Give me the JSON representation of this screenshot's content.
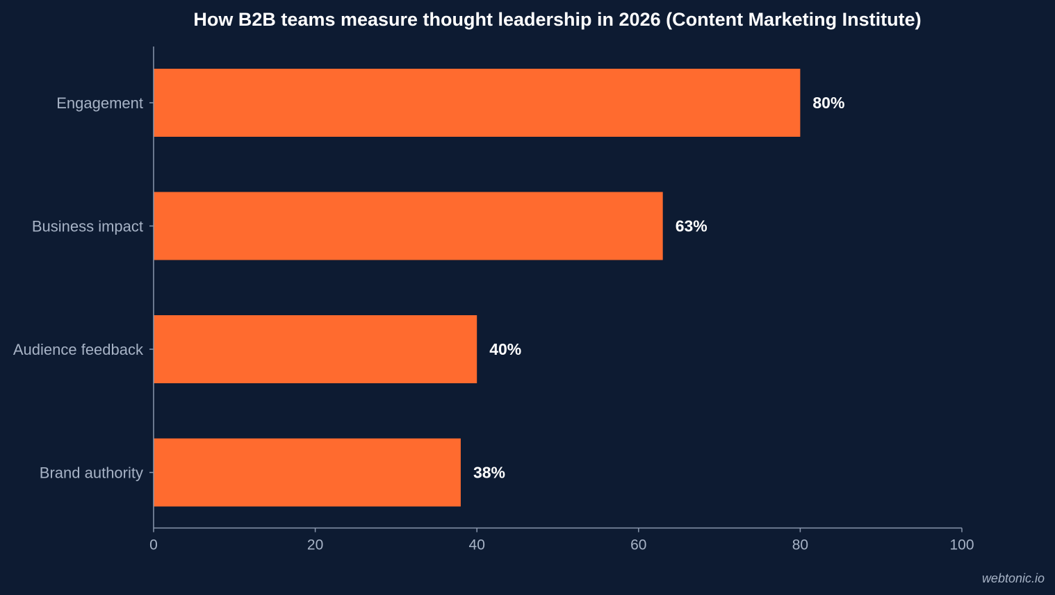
{
  "chart_data": {
    "type": "bar",
    "orientation": "horizontal",
    "title": "How B2B teams measure thought leadership in 2026 (Content Marketing Institute)",
    "categories": [
      "Engagement",
      "Business impact",
      "Audience feedback",
      "Brand authority"
    ],
    "values": [
      80,
      63,
      40,
      38
    ],
    "data_labels": [
      "80%",
      "63%",
      "40%",
      "38%"
    ],
    "xlim": [
      0,
      100
    ],
    "x_ticks": [
      0,
      20,
      40,
      60,
      80,
      100
    ],
    "xlabel": "",
    "ylabel": "",
    "grid": false,
    "legend": "none",
    "colors": {
      "bar": "#ff6b2f",
      "background": "#0d1b32",
      "axis": "#8a97ad",
      "text": "#a7b3c6",
      "title": "#ffffff"
    }
  },
  "watermark": "webtonic.io"
}
